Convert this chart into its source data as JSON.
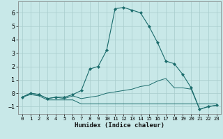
{
  "xlabel": "Humidex (Indice chaleur)",
  "bg_color": "#c8e8e8",
  "grid_color": "#a8cccc",
  "line_color": "#1a6b6b",
  "xlim": [
    -0.5,
    23.5
  ],
  "ylim": [
    -1.55,
    6.85
  ],
  "x_ticks": [
    0,
    1,
    2,
    3,
    4,
    5,
    6,
    7,
    8,
    9,
    10,
    11,
    12,
    13,
    14,
    15,
    16,
    17,
    18,
    19,
    20,
    21,
    22,
    23
  ],
  "y_ticks": [
    -1,
    0,
    1,
    2,
    3,
    4,
    5,
    6
  ],
  "series": [
    {
      "x": [
        0,
        1,
        2,
        3,
        4,
        5,
        6,
        7,
        8,
        9,
        10,
        11,
        12,
        13,
        14,
        15,
        16,
        17,
        18,
        19,
        20,
        21,
        22,
        23
      ],
      "y": [
        -0.3,
        -0.1,
        -0.2,
        -0.5,
        -0.5,
        -0.5,
        -0.5,
        -0.8,
        -0.8,
        -0.8,
        -0.8,
        -0.8,
        -0.8,
        -0.8,
        -0.8,
        -0.8,
        -0.8,
        -0.8,
        -0.8,
        -0.8,
        -0.8,
        -0.8,
        -0.8,
        -0.8
      ],
      "marker": false,
      "lw": 0.7
    },
    {
      "x": [
        0,
        1,
        2,
        3,
        4,
        5,
        6,
        7,
        8,
        9,
        10,
        11,
        12,
        13,
        14,
        15,
        16,
        17,
        18,
        19,
        20,
        21,
        22,
        23
      ],
      "y": [
        -0.3,
        0.0,
        -0.1,
        -0.4,
        -0.3,
        -0.4,
        -0.2,
        -0.4,
        -0.3,
        -0.2,
        0.0,
        0.1,
        0.2,
        0.3,
        0.5,
        0.6,
        0.9,
        1.1,
        0.4,
        0.4,
        0.3,
        -1.2,
        -1.0,
        -0.9
      ],
      "marker": false,
      "lw": 0.7
    },
    {
      "x": [
        0,
        1,
        2,
        3,
        4,
        5,
        6,
        7,
        8,
        9,
        10,
        11,
        12,
        13,
        14,
        15,
        16,
        17,
        18,
        19,
        20,
        21,
        22,
        23
      ],
      "y": [
        -0.3,
        0.0,
        -0.1,
        -0.4,
        -0.3,
        -0.3,
        -0.1,
        0.2,
        1.8,
        2.0,
        3.2,
        6.3,
        6.4,
        6.2,
        6.0,
        5.0,
        3.8,
        2.4,
        2.2,
        1.4,
        0.4,
        -1.2,
        -1.0,
        -0.9
      ],
      "marker": true,
      "lw": 0.8
    }
  ]
}
